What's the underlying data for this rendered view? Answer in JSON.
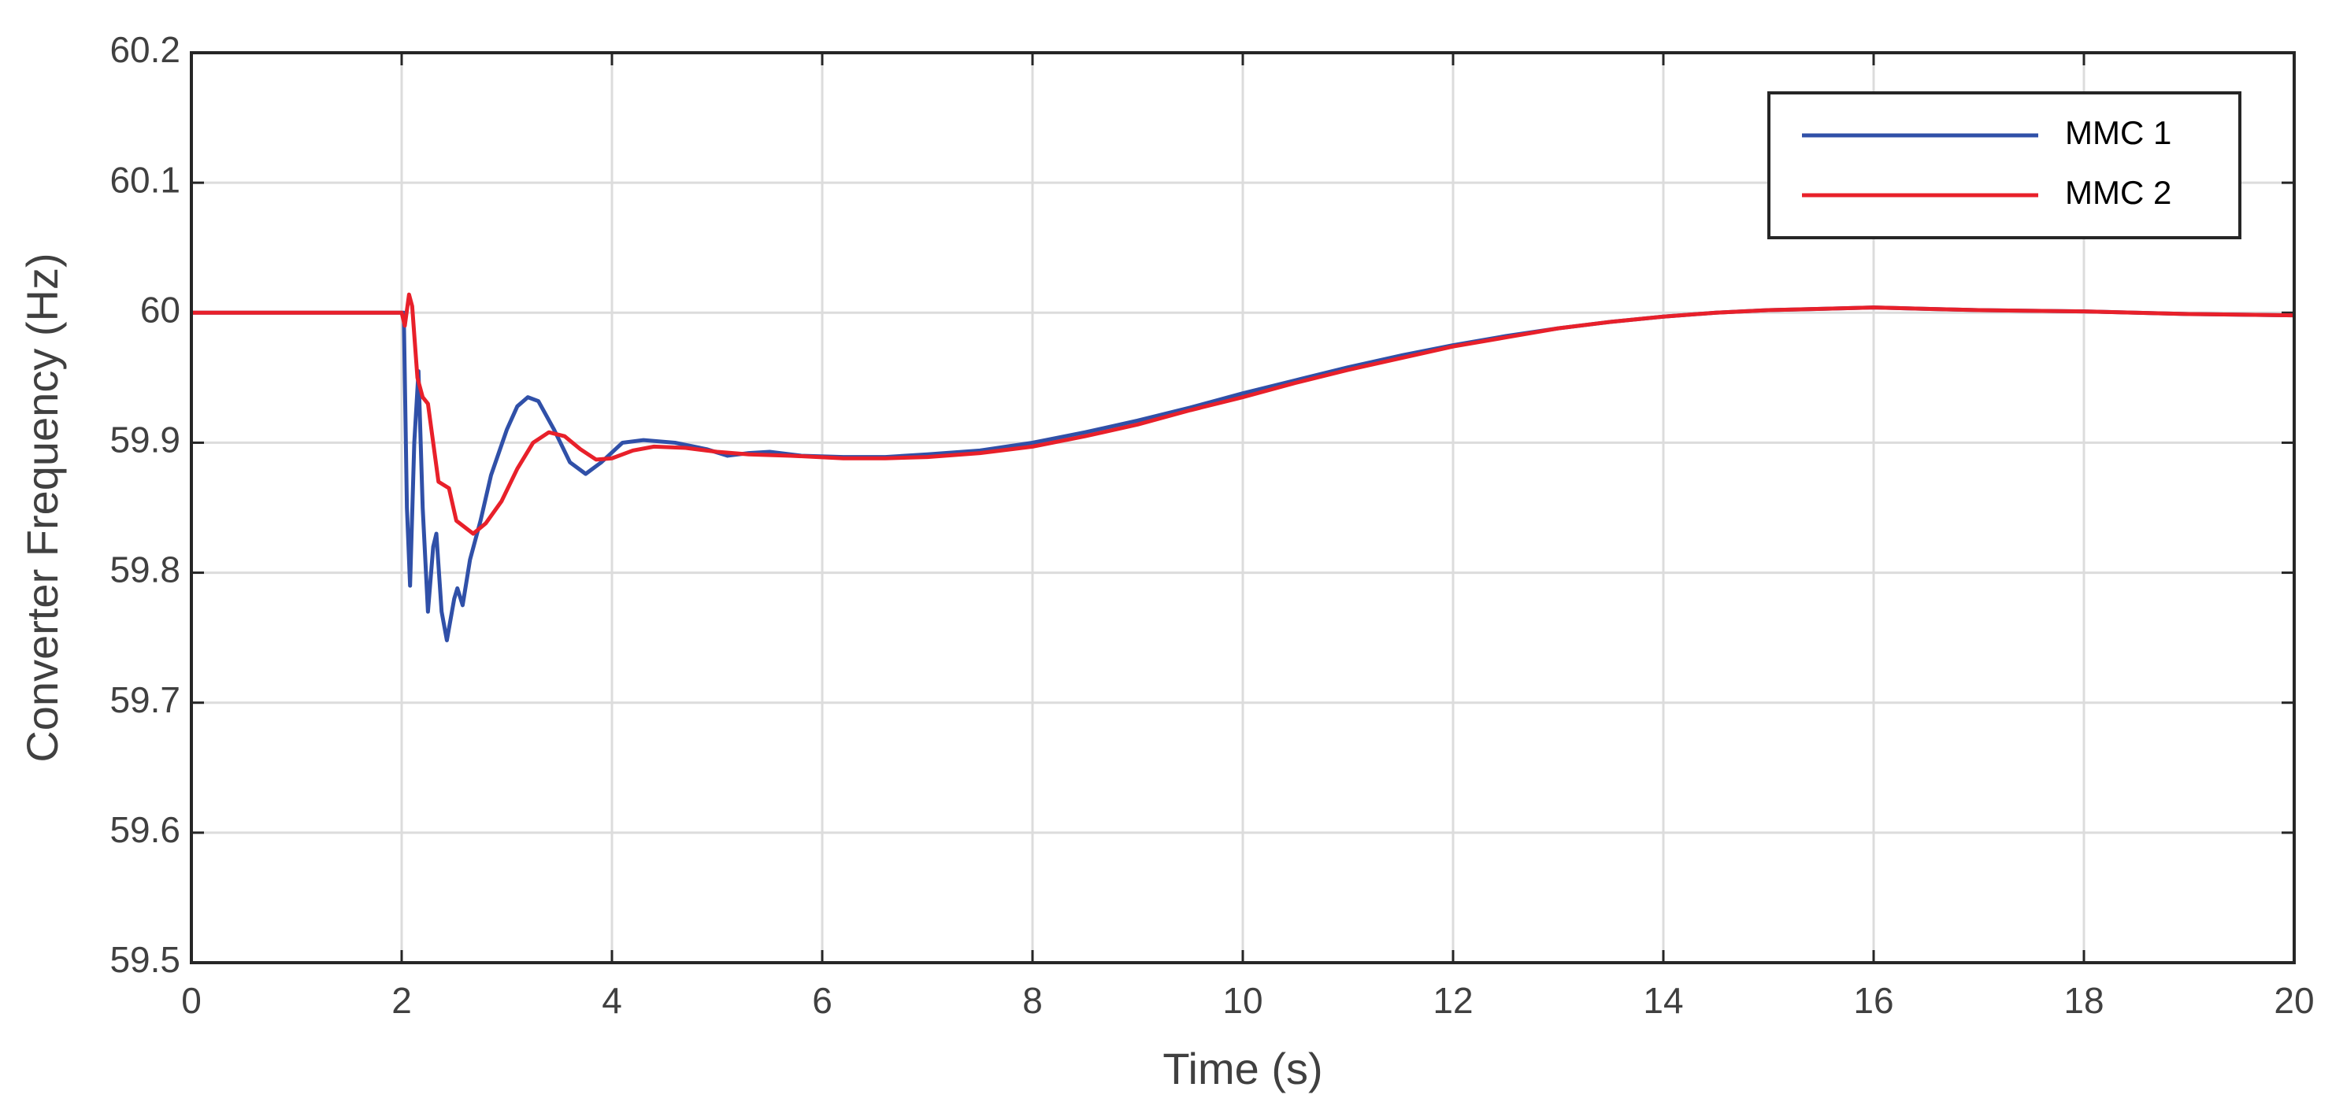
{
  "chart_data": {
    "type": "line",
    "xlabel": "Time (s)",
    "ylabel": "Converter Frequency (Hz)",
    "xlim": [
      0,
      20
    ],
    "xticks": [
      0,
      2,
      4,
      6,
      8,
      10,
      12,
      14,
      16,
      18,
      20
    ],
    "ylim": [
      59.5,
      60.2
    ],
    "yticks": [
      59.5,
      59.6,
      59.7,
      59.8,
      59.9,
      60,
      60.1,
      60.2
    ],
    "grid": true,
    "legend": "upper right",
    "series": [
      {
        "name": "MMC 1",
        "color": "#3050a8",
        "x": [
          0,
          2,
          2.02,
          2.05,
          2.08,
          2.12,
          2.16,
          2.2,
          2.25,
          2.3,
          2.33,
          2.38,
          2.43,
          2.5,
          2.53,
          2.58,
          2.65,
          2.75,
          2.85,
          3,
          3.1,
          3.2,
          3.3,
          3.45,
          3.6,
          3.75,
          3.9,
          4.1,
          4.3,
          4.6,
          4.9,
          5.1,
          5.3,
          5.5,
          5.8,
          6.2,
          6.6,
          7,
          7.5,
          8,
          8.5,
          9,
          9.5,
          10,
          10.5,
          11,
          11.5,
          12,
          12.5,
          13,
          13.5,
          14,
          14.5,
          15,
          15.5,
          16,
          16.5,
          17,
          18,
          19,
          20
        ],
        "values": [
          60,
          60,
          60,
          59.85,
          59.79,
          59.9,
          59.955,
          59.85,
          59.77,
          59.82,
          59.83,
          59.77,
          59.748,
          59.78,
          59.788,
          59.775,
          59.81,
          59.84,
          59.875,
          59.91,
          59.928,
          59.935,
          59.932,
          59.91,
          59.885,
          59.876,
          59.885,
          59.9,
          59.902,
          59.9,
          59.895,
          59.89,
          59.892,
          59.893,
          59.89,
          59.889,
          59.889,
          59.891,
          59.894,
          59.9,
          59.908,
          59.917,
          59.927,
          59.938,
          59.948,
          59.958,
          59.967,
          59.975,
          59.982,
          59.988,
          59.993,
          59.997,
          60,
          60.002,
          60.003,
          60.004,
          60.003,
          60.002,
          60.001,
          59.999,
          59.998
        ]
      },
      {
        "name": "MMC 2",
        "color": "#e8202a",
        "x": [
          0,
          2,
          2.03,
          2.07,
          2.1,
          2.15,
          2.2,
          2.25,
          2.3,
          2.35,
          2.45,
          2.52,
          2.6,
          2.68,
          2.8,
          2.95,
          3.1,
          3.25,
          3.4,
          3.55,
          3.7,
          3.85,
          4,
          4.2,
          4.4,
          4.7,
          5,
          5.3,
          5.7,
          6.2,
          6.6,
          7,
          7.5,
          8,
          8.5,
          9,
          9.5,
          10,
          10.5,
          11,
          11.5,
          12,
          12.5,
          13,
          13.5,
          14,
          14.5,
          15,
          15.5,
          16,
          16.5,
          17,
          18,
          19,
          20
        ],
        "values": [
          60,
          60,
          59.99,
          60.014,
          60.005,
          59.95,
          59.935,
          59.93,
          59.9,
          59.87,
          59.865,
          59.84,
          59.835,
          59.83,
          59.838,
          59.855,
          59.88,
          59.9,
          59.908,
          59.905,
          59.895,
          59.887,
          59.888,
          59.894,
          59.897,
          59.896,
          59.893,
          59.891,
          59.89,
          59.888,
          59.888,
          59.889,
          59.892,
          59.897,
          59.905,
          59.914,
          59.925,
          59.935,
          59.946,
          59.956,
          59.965,
          59.974,
          59.981,
          59.988,
          59.993,
          59.997,
          60,
          60.002,
          60.003,
          60.004,
          60.003,
          60.002,
          60.001,
          59.999,
          59.998
        ]
      }
    ]
  }
}
